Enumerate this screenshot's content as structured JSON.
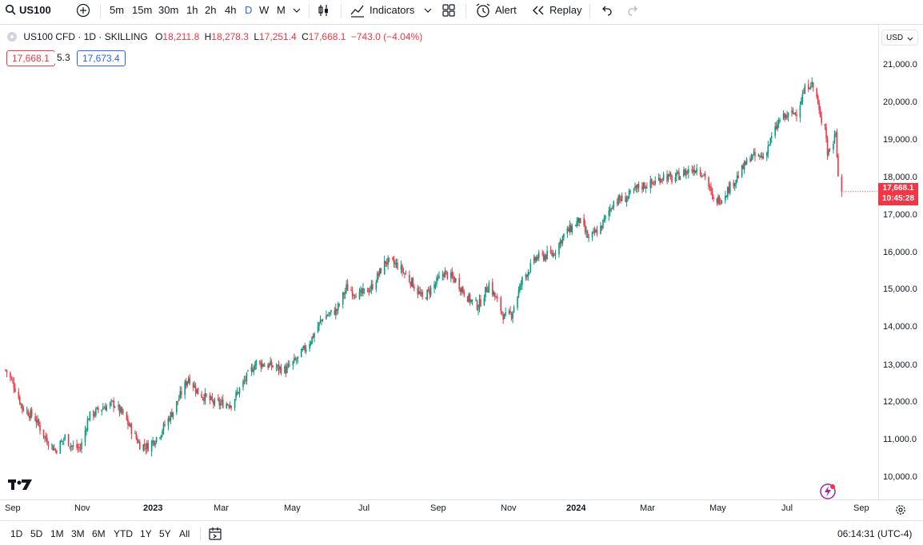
{
  "toolbar": {
    "symbol": "US100",
    "intervals": [
      "5m",
      "15m",
      "30m",
      "1h",
      "2h",
      "4h",
      "D",
      "W",
      "M"
    ],
    "active_interval": "D",
    "indicators_label": "Indicators",
    "alert_label": "Alert",
    "replay_label": "Replay"
  },
  "legend": {
    "title": "US100 CFD · 1D · SKILLING",
    "open_label": "O",
    "open": "18,211.8",
    "high_label": "H",
    "high": "18,278.3",
    "low_label": "L",
    "low": "17,251.4",
    "close_label": "C",
    "close": "17,668.1",
    "change": "−743.0 (−4.04%)",
    "bid": "17,668.1",
    "spread": "5.3",
    "ask": "17,673.4"
  },
  "price_axis": {
    "currency": "USD",
    "ticks": [
      "21,000.0",
      "20,000.0",
      "19,000.0",
      "18,000.0",
      "17,000.0",
      "16,000.0",
      "15,000.0",
      "14,000.0",
      "13,000.0",
      "12,000.0",
      "11,000.0",
      "10,000.0"
    ],
    "last_price": "17,668.1",
    "countdown": "10:45:28"
  },
  "time_axis": {
    "ticks": [
      "Sep",
      "Nov",
      "2023",
      "Mar",
      "May",
      "Jul",
      "Sep",
      "Nov",
      "2024",
      "Mar",
      "May",
      "Jul",
      "Sep"
    ]
  },
  "bottom_bar": {
    "ranges": [
      "1D",
      "5D",
      "1M",
      "3M",
      "6M",
      "YTD",
      "1Y",
      "5Y",
      "All"
    ],
    "clock": "06:14:31 (UTC-4)"
  },
  "colors": {
    "up": "#089981",
    "down": "#f23645",
    "accent": "#2962ff"
  },
  "chart_data": {
    "type": "candlestick",
    "symbol": "US100",
    "interval": "1D",
    "ylim": [
      9700,
      21300
    ],
    "x_range": [
      "2022-09-01",
      "2024-09-05"
    ],
    "xlabel": "",
    "ylabel": "",
    "grid": false,
    "points": [
      [
        "2022-09-01",
        12900
      ],
      [
        "2022-09-08",
        12500
      ],
      [
        "2022-09-15",
        11900
      ],
      [
        "2022-09-26",
        11600
      ],
      [
        "2022-10-04",
        11100
      ],
      [
        "2022-10-13",
        10750
      ],
      [
        "2022-10-21",
        11100
      ],
      [
        "2022-10-27",
        10850
      ],
      [
        "2022-11-03",
        10800
      ],
      [
        "2022-11-10",
        11650
      ],
      [
        "2022-11-22",
        11900
      ],
      [
        "2022-12-01",
        12000
      ],
      [
        "2022-12-09",
        11700
      ],
      [
        "2022-12-16",
        11300
      ],
      [
        "2022-12-23",
        10900
      ],
      [
        "2022-12-30",
        10850
      ],
      [
        "2023-01-09",
        11200
      ],
      [
        "2023-01-20",
        11800
      ],
      [
        "2023-02-02",
        12700
      ],
      [
        "2023-02-10",
        12300
      ],
      [
        "2023-02-24",
        12000
      ],
      [
        "2023-03-10",
        12000
      ],
      [
        "2023-03-21",
        12600
      ],
      [
        "2023-03-31",
        13100
      ],
      [
        "2023-04-13",
        13000
      ],
      [
        "2023-04-25",
        12900
      ],
      [
        "2023-05-05",
        13200
      ],
      [
        "2023-05-16",
        13700
      ],
      [
        "2023-05-26",
        14300
      ],
      [
        "2023-06-07",
        14500
      ],
      [
        "2023-06-15",
        15100
      ],
      [
        "2023-06-26",
        14900
      ],
      [
        "2023-07-06",
        15100
      ],
      [
        "2023-07-18",
        15800
      ],
      [
        "2023-07-28",
        15700
      ],
      [
        "2023-08-10",
        15200
      ],
      [
        "2023-08-18",
        14800
      ],
      [
        "2023-08-29",
        15200
      ],
      [
        "2023-09-05",
        15500
      ],
      [
        "2023-09-15",
        15300
      ],
      [
        "2023-09-26",
        14800
      ],
      [
        "2023-10-04",
        14600
      ],
      [
        "2023-10-13",
        15200
      ],
      [
        "2023-10-26",
        14300
      ],
      [
        "2023-11-01",
        14400
      ],
      [
        "2023-11-10",
        15300
      ],
      [
        "2023-11-22",
        15900
      ],
      [
        "2023-12-06",
        16000
      ],
      [
        "2023-12-15",
        16500
      ],
      [
        "2023-12-28",
        16900
      ],
      [
        "2024-01-05",
        16400
      ],
      [
        "2024-01-15",
        16700
      ],
      [
        "2024-01-26",
        17400
      ],
      [
        "2024-02-06",
        17500
      ],
      [
        "2024-02-16",
        17800
      ],
      [
        "2024-02-29",
        17900
      ],
      [
        "2024-03-08",
        18100
      ],
      [
        "2024-03-15",
        18000
      ],
      [
        "2024-03-27",
        18200
      ],
      [
        "2024-04-05",
        18300
      ],
      [
        "2024-04-12",
        18100
      ],
      [
        "2024-04-19",
        17400
      ],
      [
        "2024-04-26",
        17500
      ],
      [
        "2024-05-03",
        17800
      ],
      [
        "2024-05-10",
        18100
      ],
      [
        "2024-05-20",
        18600
      ],
      [
        "2024-05-31",
        18600
      ],
      [
        "2024-06-07",
        19100
      ],
      [
        "2024-06-14",
        19600
      ],
      [
        "2024-06-21",
        19700
      ],
      [
        "2024-06-28",
        19800
      ],
      [
        "2024-07-05",
        20400
      ],
      [
        "2024-07-10",
        20600
      ],
      [
        "2024-07-15",
        20200
      ],
      [
        "2024-07-18",
        19600
      ],
      [
        "2024-07-22",
        19500
      ],
      [
        "2024-07-24",
        18700
      ],
      [
        "2024-07-29",
        19000
      ],
      [
        "2024-07-31",
        19300
      ],
      [
        "2024-08-01",
        18700
      ],
      [
        "2024-08-02",
        18200
      ],
      [
        "2024-08-05",
        17668
      ]
    ]
  }
}
